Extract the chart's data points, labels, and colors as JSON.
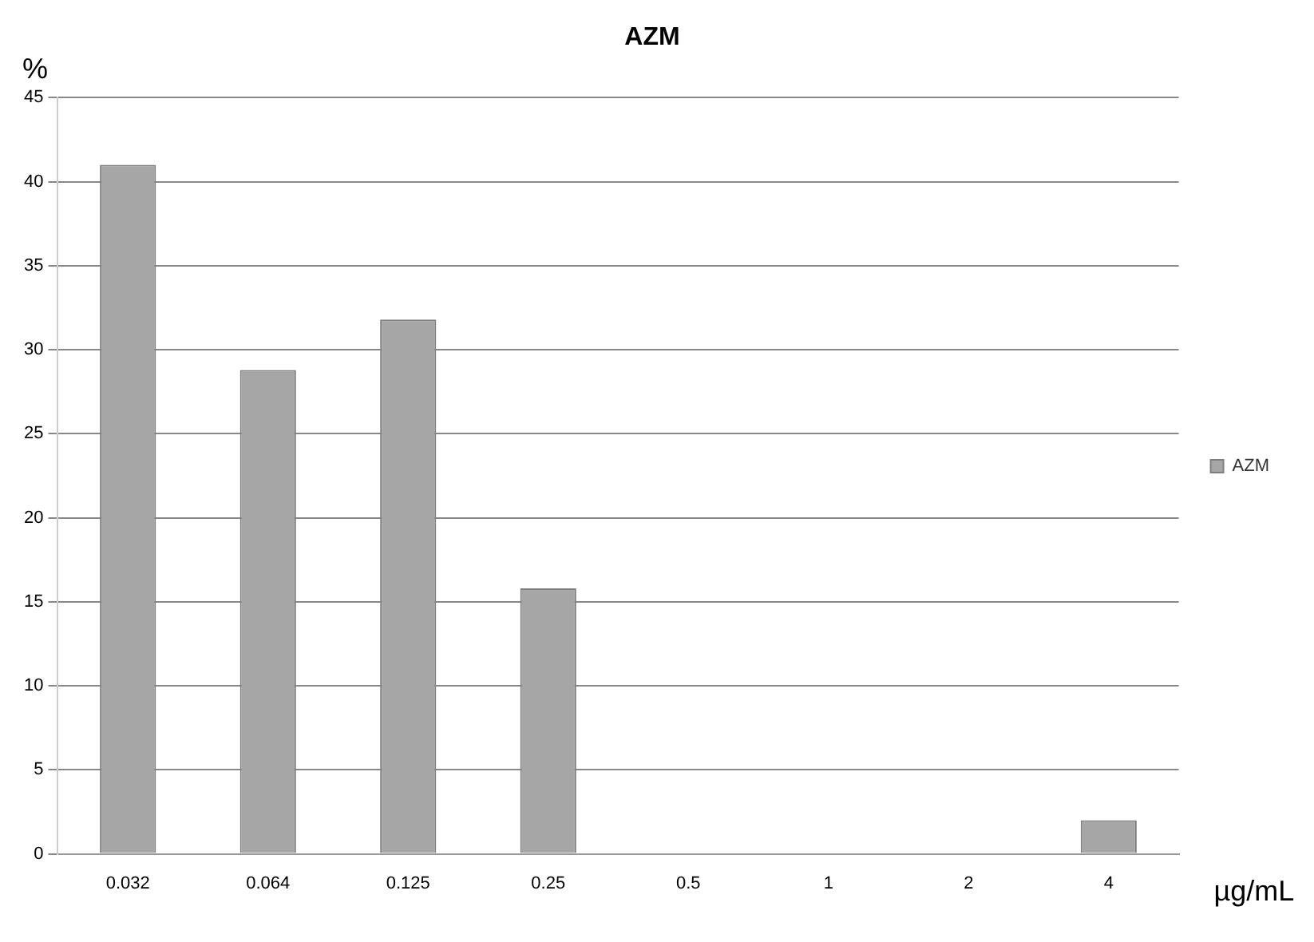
{
  "chart_data": {
    "type": "bar",
    "title": "AZM",
    "xlabel": "µg/mL",
    "ylabel": "%",
    "categories": [
      "0.032",
      "0.064",
      "0.125",
      "0.25",
      "0.5",
      "1",
      "2",
      "4"
    ],
    "series": [
      {
        "name": "AZM",
        "color": "#a6a6a6",
        "values": [
          41,
          28.8,
          31.8,
          15.8,
          0,
          0,
          0,
          2
        ]
      }
    ],
    "ylim": [
      0,
      45
    ],
    "yticks": [
      0,
      5,
      10,
      15,
      20,
      25,
      30,
      35,
      40,
      45
    ],
    "grid": "y",
    "legend": "right"
  }
}
